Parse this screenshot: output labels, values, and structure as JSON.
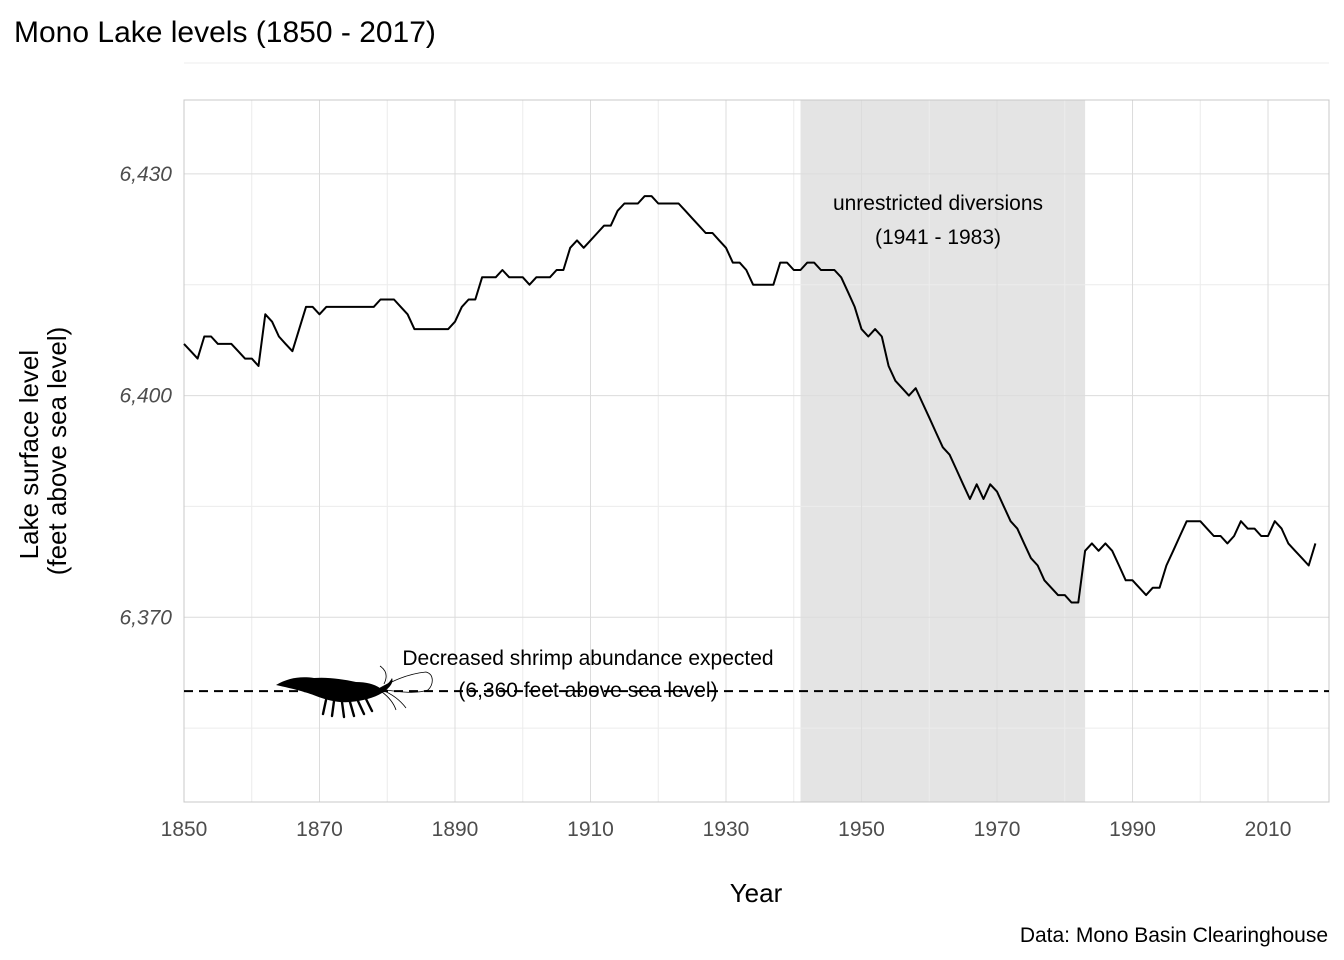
{
  "chart_data": {
    "type": "line",
    "title": "Mono Lake levels (1850 - 2017)",
    "xlabel": "Year",
    "ylabel": [
      "Lake surface level",
      "(feet above sea level)"
    ],
    "caption": "Data: Mono Basin Clearinghouse",
    "xlim": [
      1850,
      2019
    ],
    "ylim": [
      6345,
      6440
    ],
    "x_ticks": [
      1850,
      1870,
      1890,
      1910,
      1930,
      1950,
      1970,
      1990,
      2010
    ],
    "x_tick_labels": [
      "1850",
      "1870",
      "1890",
      "1910",
      "1930",
      "1950",
      "1970",
      "1990",
      "2010"
    ],
    "y_ticks": [
      6370,
      6400,
      6430
    ],
    "y_tick_labels": [
      "6,370",
      "6,400",
      "6,430"
    ],
    "grid": true,
    "shaded_region": {
      "x_start": 1941,
      "x_end": 1983,
      "color": "#e4e4e4",
      "label_lines": [
        "unrestricted diversions",
        "(1941 - 1983)"
      ]
    },
    "reference_line": {
      "y": 6360,
      "style": "dashed",
      "label_lines": [
        "Decreased shrimp abundance expected",
        "(6,360 feet above sea level)"
      ]
    },
    "icon": "shrimp-silhouette-icon",
    "series": [
      {
        "x": [
          1850,
          1851,
          1852,
          1853,
          1854,
          1855,
          1856,
          1857,
          1858,
          1859,
          1860,
          1861,
          1862,
          1863,
          1864,
          1865,
          1866,
          1867,
          1868,
          1869,
          1870,
          1871,
          1872,
          1873,
          1874,
          1875,
          1876,
          1877,
          1878,
          1879,
          1880,
          1881,
          1882,
          1883,
          1884,
          1885,
          1886,
          1887,
          1888,
          1889,
          1890,
          1891,
          1892,
          1893,
          1894,
          1895,
          1896,
          1897,
          1898,
          1899,
          1900,
          1901,
          1902,
          1903,
          1904,
          1905,
          1906,
          1907,
          1908,
          1909,
          1910,
          1911,
          1912,
          1913,
          1914,
          1915,
          1916,
          1917,
          1918,
          1919,
          1920,
          1921,
          1922,
          1923,
          1924,
          1925,
          1926,
          1927,
          1928,
          1929,
          1930,
          1931,
          1932,
          1933,
          1934,
          1935,
          1936,
          1937,
          1938,
          1939,
          1940,
          1941,
          1942,
          1943,
          1944,
          1945,
          1946,
          1947,
          1948,
          1949,
          1950,
          1951,
          1952,
          1953,
          1954,
          1955,
          1956,
          1957,
          1958,
          1959,
          1960,
          1961,
          1962,
          1963,
          1964,
          1965,
          1966,
          1967,
          1968,
          1969,
          1970,
          1971,
          1972,
          1973,
          1974,
          1975,
          1976,
          1977,
          1978,
          1979,
          1980,
          1981,
          1982,
          1983,
          1984,
          1985,
          1986,
          1987,
          1988,
          1989,
          1990,
          1991,
          1992,
          1993,
          1994,
          1995,
          1996,
          1997,
          1998,
          1999,
          2000,
          2001,
          2002,
          2003,
          2004,
          2005,
          2006,
          2007,
          2008,
          2009,
          2010,
          2011,
          2012,
          2013,
          2014,
          2015,
          2016,
          2017
        ],
        "y": [
          6407,
          6406,
          6405,
          6408,
          6408,
          6407,
          6407,
          6407,
          6406,
          6405,
          6405,
          6404,
          6411,
          6410,
          6408,
          6407,
          6406,
          6409,
          6412,
          6412,
          6411,
          6412,
          6412,
          6412,
          6412,
          6412,
          6412,
          6412,
          6412,
          6413,
          6413,
          6413,
          6412,
          6411,
          6409,
          6409,
          6409,
          6409,
          6409,
          6409,
          6410,
          6412,
          6413,
          6413,
          6416,
          6416,
          6416,
          6417,
          6416,
          6416,
          6416,
          6415,
          6416,
          6416,
          6416,
          6417,
          6417,
          6420,
          6421,
          6420,
          6421,
          6422,
          6423,
          6423,
          6425,
          6426,
          6426,
          6426,
          6427,
          6427,
          6426,
          6426,
          6426,
          6426,
          6425,
          6424,
          6423,
          6422,
          6422,
          6421,
          6420,
          6418,
          6418,
          6417,
          6415,
          6415,
          6415,
          6415,
          6418,
          6418,
          6417,
          6417,
          6418,
          6418,
          6417,
          6417,
          6417,
          6416,
          6414,
          6412,
          6409,
          6408,
          6409,
          6408,
          6404,
          6402,
          6401,
          6400,
          6401,
          6399,
          6397,
          6395,
          6393,
          6392,
          6390,
          6388,
          6386,
          6388,
          6386,
          6388,
          6387,
          6385,
          6383,
          6382,
          6380,
          6378,
          6377,
          6375,
          6374,
          6373,
          6373,
          6372,
          6372,
          6379,
          6380,
          6379,
          6380,
          6379,
          6377,
          6375,
          6375,
          6374,
          6373,
          6374,
          6374,
          6377,
          6379,
          6381,
          6383,
          6383,
          6383,
          6382,
          6381,
          6381,
          6380,
          6381,
          6383,
          6382,
          6382,
          6381,
          6381,
          6383,
          6382,
          6380,
          6379,
          6378,
          6377,
          6380
        ]
      }
    ]
  }
}
